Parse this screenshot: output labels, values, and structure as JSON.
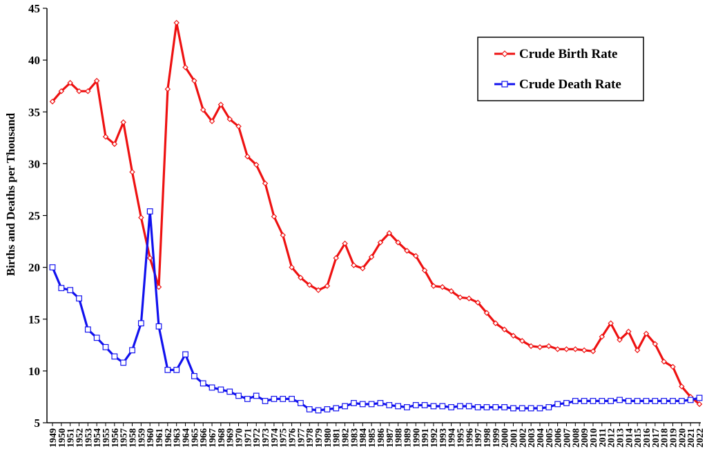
{
  "chart_data": {
    "type": "line",
    "title": "",
    "xlabel": "",
    "ylabel": "Births and Deaths per Thousand",
    "ylim": [
      5,
      45
    ],
    "yticks": [
      5,
      10,
      15,
      20,
      25,
      30,
      35,
      40,
      45
    ],
    "grid": false,
    "legend_position": "top-right",
    "x": [
      1949,
      1950,
      1951,
      1952,
      1953,
      1954,
      1955,
      1956,
      1957,
      1958,
      1959,
      1960,
      1961,
      1962,
      1963,
      1964,
      1965,
      1966,
      1967,
      1968,
      1969,
      1970,
      1971,
      1972,
      1973,
      1974,
      1975,
      1976,
      1977,
      1978,
      1979,
      1980,
      1981,
      1982,
      1983,
      1984,
      1985,
      1986,
      1987,
      1988,
      1989,
      1990,
      1991,
      1992,
      1993,
      1994,
      1995,
      1996,
      1997,
      1998,
      1999,
      2000,
      2001,
      2002,
      2003,
      2004,
      2005,
      2006,
      2007,
      2008,
      2009,
      2010,
      2011,
      2012,
      2013,
      2014,
      2015,
      2016,
      2017,
      2018,
      2019,
      2020,
      2021,
      2022
    ],
    "series": [
      {
        "name": "Crude Birth Rate",
        "color": "#ee1111",
        "marker": "diamond",
        "values": [
          36.0,
          37.0,
          37.8,
          37.0,
          37.0,
          38.0,
          32.6,
          31.9,
          34.0,
          29.2,
          24.8,
          20.9,
          18.1,
          37.2,
          43.6,
          39.3,
          38.0,
          35.2,
          34.1,
          35.7,
          34.3,
          33.6,
          30.7,
          29.9,
          28.1,
          24.9,
          23.1,
          20.0,
          19.0,
          18.3,
          17.8,
          18.2,
          20.9,
          22.3,
          20.2,
          19.9,
          21.0,
          22.4,
          23.3,
          22.4,
          21.6,
          21.1,
          19.7,
          18.2,
          18.1,
          17.7,
          17.1,
          17.0,
          16.6,
          15.6,
          14.6,
          14.0,
          13.4,
          12.9,
          12.4,
          12.3,
          12.4,
          12.1,
          12.1,
          12.1,
          12.0,
          11.9,
          13.3,
          14.6,
          13.0,
          13.8,
          12.0,
          13.6,
          12.6,
          10.9,
          10.4,
          8.5,
          7.5,
          6.8
        ]
      },
      {
        "name": "Crude Death Rate",
        "color": "#1111ee",
        "marker": "square",
        "values": [
          20.0,
          18.0,
          17.8,
          17.0,
          14.0,
          13.2,
          12.3,
          11.4,
          10.8,
          12.0,
          14.6,
          25.4,
          14.3,
          10.1,
          10.1,
          11.6,
          9.5,
          8.8,
          8.4,
          8.2,
          8.0,
          7.6,
          7.3,
          7.6,
          7.1,
          7.3,
          7.3,
          7.3,
          6.9,
          6.3,
          6.2,
          6.3,
          6.4,
          6.6,
          6.9,
          6.8,
          6.8,
          6.9,
          6.7,
          6.6,
          6.5,
          6.7,
          6.7,
          6.6,
          6.6,
          6.5,
          6.6,
          6.6,
          6.5,
          6.5,
          6.5,
          6.5,
          6.4,
          6.4,
          6.4,
          6.4,
          6.5,
          6.8,
          6.9,
          7.1,
          7.1,
          7.1,
          7.1,
          7.1,
          7.2,
          7.1,
          7.1,
          7.1,
          7.1,
          7.1,
          7.1,
          7.1,
          7.2,
          7.4
        ]
      }
    ]
  }
}
